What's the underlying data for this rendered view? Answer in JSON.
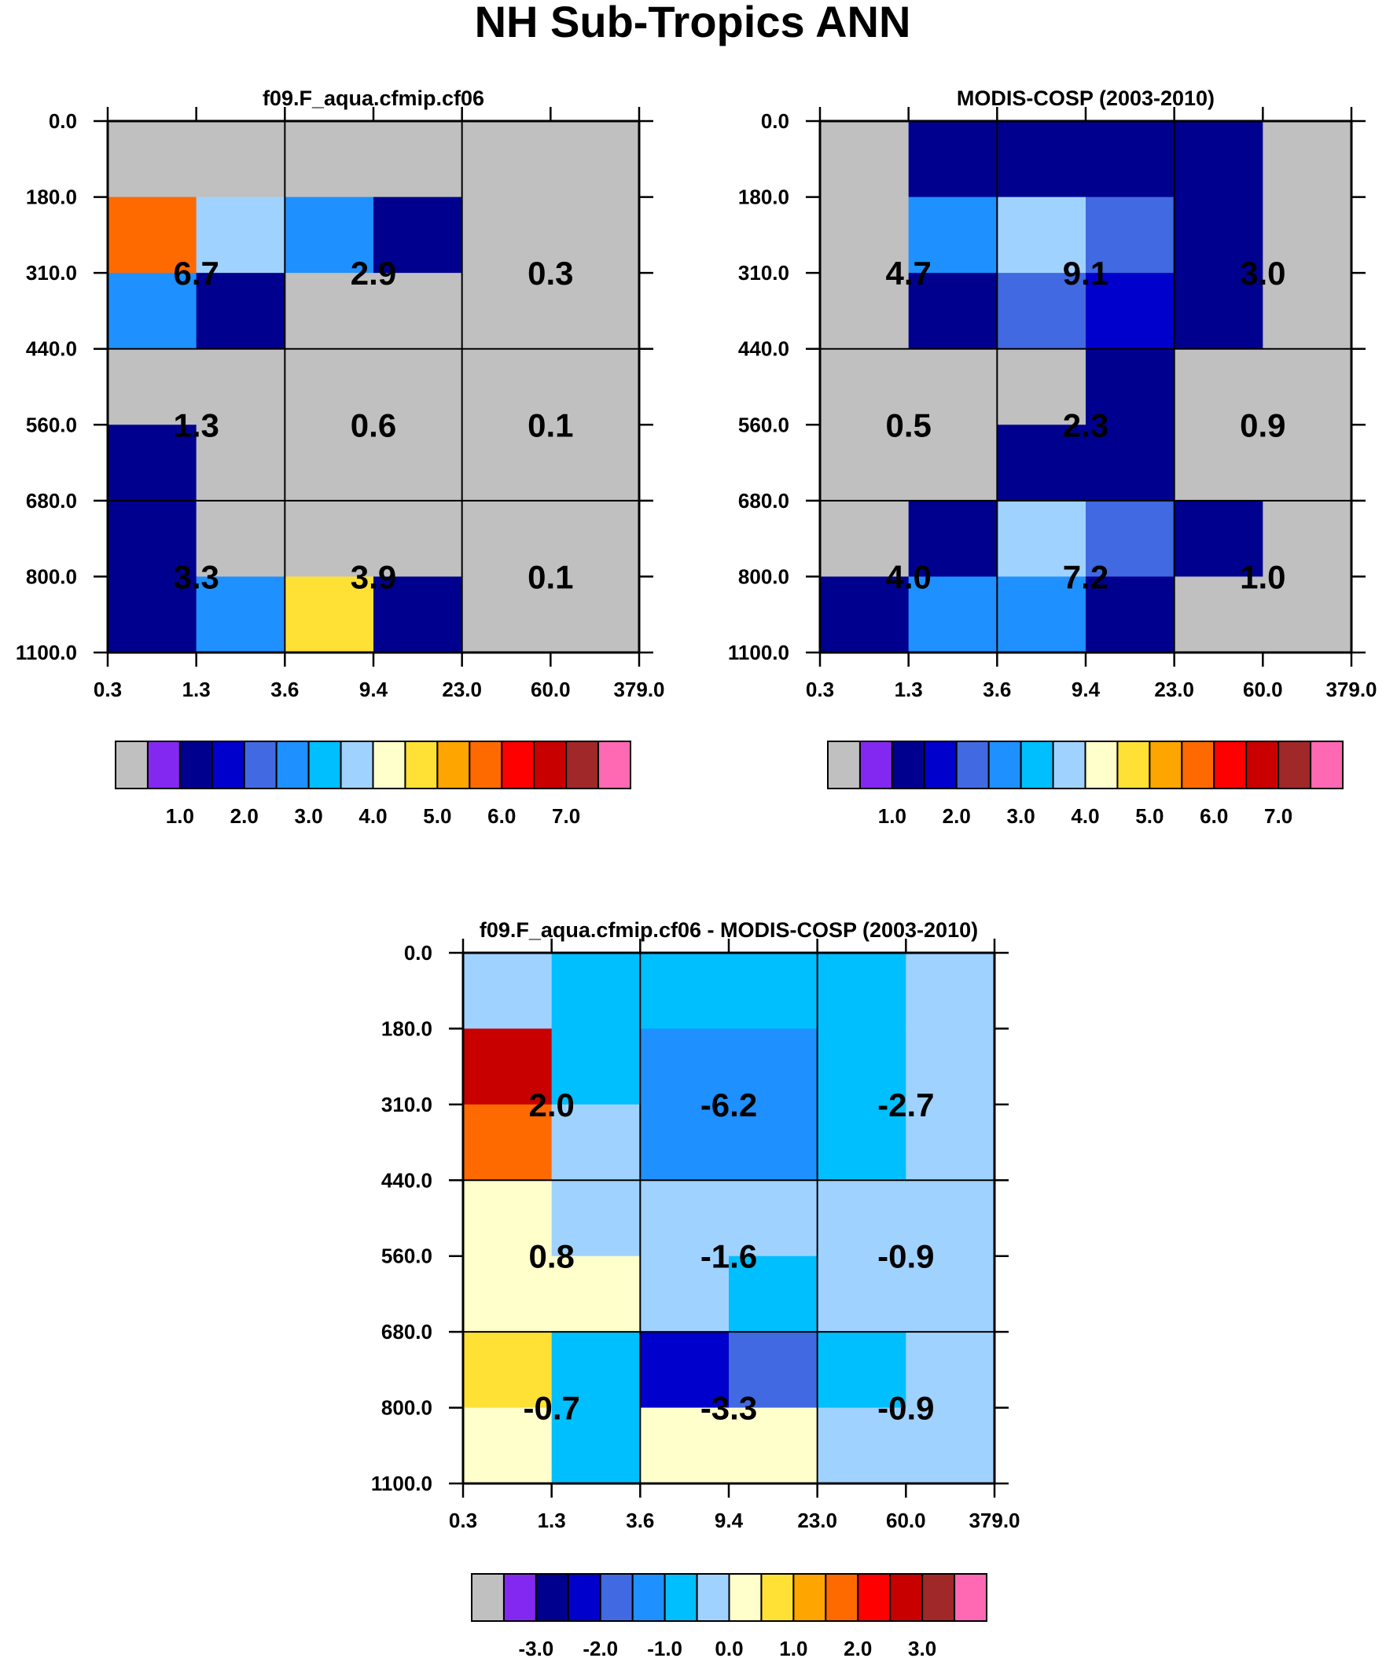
{
  "figure": {
    "title": "NH Sub-Tropics ANN"
  },
  "chart_data": [
    {
      "type": "heatmap",
      "title": "f09.F_aqua.cfmip.cf06",
      "x_tick_labels": [
        "0.3",
        "1.3",
        "3.6",
        "9.4",
        "23.0",
        "60.0",
        "379.0"
      ],
      "y_tick_labels": [
        "0.0",
        "180.0",
        "310.0",
        "440.0",
        "560.0",
        "680.0",
        "800.0",
        "1100.0"
      ],
      "cell_values": [
        [
          0,
          0,
          0,
          0,
          0,
          0
        ],
        [
          5.5,
          3.5,
          2.5,
          1.0,
          0,
          0
        ],
        [
          2.5,
          1.0,
          0,
          0,
          0,
          0
        ],
        [
          0,
          0,
          0,
          0,
          0,
          0
        ],
        [
          1.0,
          0,
          0,
          0,
          0,
          0
        ],
        [
          1.0,
          0,
          0,
          0,
          0,
          0
        ],
        [
          1.0,
          2.5,
          4.5,
          1.0,
          0,
          0
        ]
      ],
      "group_labels": [
        [
          "6.7",
          "2.9",
          "0.3"
        ],
        [
          "1.3",
          "0.6",
          "0.1"
        ],
        [
          "3.3",
          "3.9",
          "0.1"
        ]
      ],
      "colorbar": {
        "colors": [
          "#c0c0c0",
          "#8328f1",
          "#00008f",
          "#0000cc",
          "#4169e1",
          "#1e90ff",
          "#00bfff",
          "#a0d2ff",
          "#ffffcc",
          "#ffe135",
          "#ffa500",
          "#ff6a00",
          "#ff0000",
          "#c80000",
          "#a02828",
          "#ff69b4"
        ],
        "levels": [
          0.5,
          1.0,
          1.5,
          2.0,
          2.5,
          3.0,
          3.5,
          4.0,
          4.5,
          5.0,
          5.5,
          6.0,
          6.5,
          7.0,
          7.5
        ],
        "labels": [
          "1.0",
          "2.0",
          "3.0",
          "4.0",
          "5.0",
          "6.0",
          "7.0"
        ]
      }
    },
    {
      "type": "heatmap",
      "title": "MODIS-COSP (2003-2010)",
      "x_tick_labels": [
        "0.3",
        "1.3",
        "3.6",
        "9.4",
        "23.0",
        "60.0",
        "379.0"
      ],
      "y_tick_labels": [
        "0.0",
        "180.0",
        "310.0",
        "440.0",
        "560.0",
        "680.0",
        "800.0",
        "1100.0"
      ],
      "cell_values": [
        [
          0,
          1.0,
          1.0,
          1.0,
          1.0,
          0
        ],
        [
          0,
          2.5,
          3.5,
          2.0,
          1.0,
          0
        ],
        [
          0,
          1.0,
          2.0,
          1.5,
          1.0,
          0
        ],
        [
          0,
          0,
          0,
          1.0,
          0,
          0
        ],
        [
          0,
          0,
          1.0,
          1.0,
          0,
          0
        ],
        [
          0,
          1.0,
          3.5,
          2.0,
          1.0,
          0
        ],
        [
          1.0,
          2.5,
          2.5,
          1.0,
          0,
          0
        ]
      ],
      "group_labels": [
        [
          "4.7",
          "9.1",
          "3.0"
        ],
        [
          "0.5",
          "2.3",
          "0.9"
        ],
        [
          "4.0",
          "7.2",
          "1.0"
        ]
      ],
      "colorbar": {
        "colors": [
          "#c0c0c0",
          "#8328f1",
          "#00008f",
          "#0000cc",
          "#4169e1",
          "#1e90ff",
          "#00bfff",
          "#a0d2ff",
          "#ffffcc",
          "#ffe135",
          "#ffa500",
          "#ff6a00",
          "#ff0000",
          "#c80000",
          "#a02828",
          "#ff69b4"
        ],
        "levels": [
          0.5,
          1.0,
          1.5,
          2.0,
          2.5,
          3.0,
          3.5,
          4.0,
          4.5,
          5.0,
          5.5,
          6.0,
          6.5,
          7.0,
          7.5
        ],
        "labels": [
          "1.0",
          "2.0",
          "3.0",
          "4.0",
          "5.0",
          "6.0",
          "7.0"
        ]
      }
    },
    {
      "type": "heatmap",
      "title": "f09.F_aqua.cfmip.cf06 - MODIS-COSP (2003-2010)",
      "x_tick_labels": [
        "0.3",
        "1.3",
        "3.6",
        "9.4",
        "23.0",
        "60.0",
        "379.0"
      ],
      "y_tick_labels": [
        "0.0",
        "180.0",
        "310.0",
        "440.0",
        "560.0",
        "680.0",
        "800.0",
        "1100.0"
      ],
      "cell_values": [
        [
          -0.25,
          -0.75,
          -0.75,
          -0.75,
          -0.75,
          -0.25
        ],
        [
          2.75,
          -0.75,
          -1.25,
          -1.25,
          -0.75,
          -0.25
        ],
        [
          1.75,
          -0.25,
          -1.25,
          -1.25,
          -0.75,
          -0.25
        ],
        [
          0.25,
          -0.25,
          -0.25,
          -0.25,
          -0.25,
          -0.25
        ],
        [
          0.25,
          0.25,
          -0.25,
          -0.75,
          -0.25,
          -0.25
        ],
        [
          0.75,
          -0.75,
          -2.25,
          -1.75,
          -0.75,
          -0.25
        ],
        [
          0.25,
          -0.75,
          0.25,
          0.25,
          -0.25,
          -0.25
        ]
      ],
      "group_labels": [
        [
          "2.0",
          "-6.2",
          "-2.7"
        ],
        [
          "0.8",
          "-1.6",
          "-0.9"
        ],
        [
          "-0.7",
          "-3.3",
          "-0.9"
        ]
      ],
      "colorbar": {
        "colors": [
          "#c0c0c0",
          "#8328f1",
          "#00008f",
          "#0000cc",
          "#4169e1",
          "#1e90ff",
          "#00bfff",
          "#a0d2ff",
          "#ffffcc",
          "#ffe135",
          "#ffa500",
          "#ff6a00",
          "#ff0000",
          "#c80000",
          "#a02828",
          "#ff69b4"
        ],
        "levels": [
          -3.5,
          -3.0,
          -2.5,
          -2.0,
          -1.5,
          -1.0,
          -0.5,
          0.0,
          0.5,
          1.0,
          1.5,
          2.0,
          2.5,
          3.0,
          3.5
        ],
        "labels": [
          "-3.0",
          "-2.0",
          "-1.0",
          "0.0",
          "1.0",
          "2.0",
          "3.0"
        ]
      }
    }
  ]
}
